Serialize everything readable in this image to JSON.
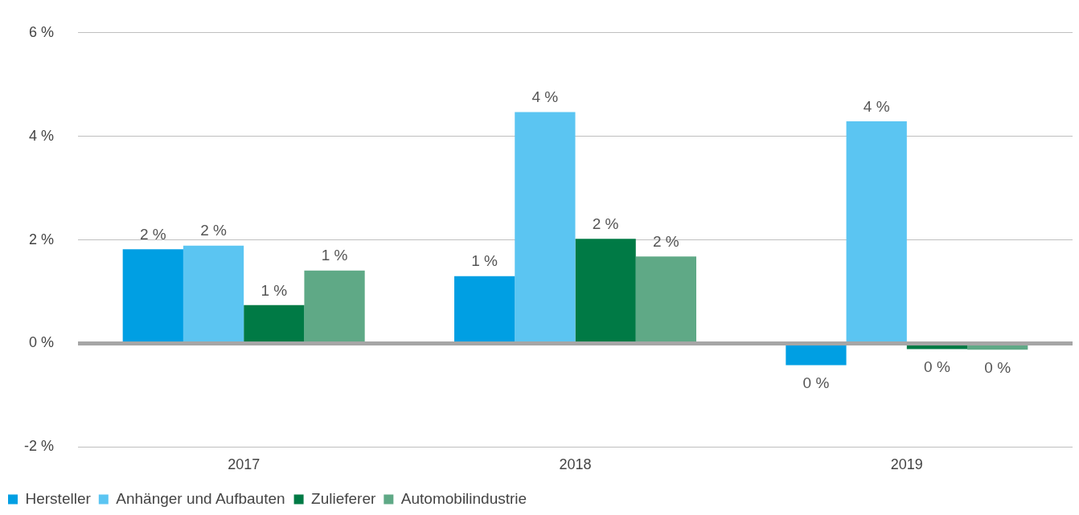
{
  "chart_data": {
    "type": "bar",
    "categories": [
      "2017",
      "2018",
      "2019"
    ],
    "series": [
      {
        "name": "Hersteller",
        "color": "#009fe3",
        "values": [
          1.82,
          1.3,
          -0.42
        ],
        "value_labels": [
          "2 %",
          "1 %",
          "0 %"
        ]
      },
      {
        "name": "Anhänger und Aufbauten",
        "color": "#5bc5f2",
        "values": [
          1.89,
          4.47,
          4.29
        ],
        "value_labels": [
          "2 %",
          "4 %",
          "4 %"
        ]
      },
      {
        "name": "Zulieferer",
        "color": "#007a45",
        "values": [
          0.74,
          2.02,
          -0.11
        ],
        "value_labels": [
          "1 %",
          "2 %",
          "0 %"
        ]
      },
      {
        "name": "Automobilindustrie",
        "color": "#5fa986",
        "values": [
          1.41,
          1.68,
          -0.12
        ],
        "value_labels": [
          "1 %",
          "2 %",
          "0 %"
        ]
      }
    ],
    "ylim": [
      -2,
      6
    ],
    "yticks": [
      {
        "value": -2,
        "label": "-2 %"
      },
      {
        "value": 0,
        "label": "0 %"
      },
      {
        "value": 2,
        "label": "2 %"
      },
      {
        "value": 4,
        "label": "4 %"
      },
      {
        "value": 6,
        "label": "6 %"
      }
    ],
    "grid": "y",
    "legend": "bottom left"
  }
}
